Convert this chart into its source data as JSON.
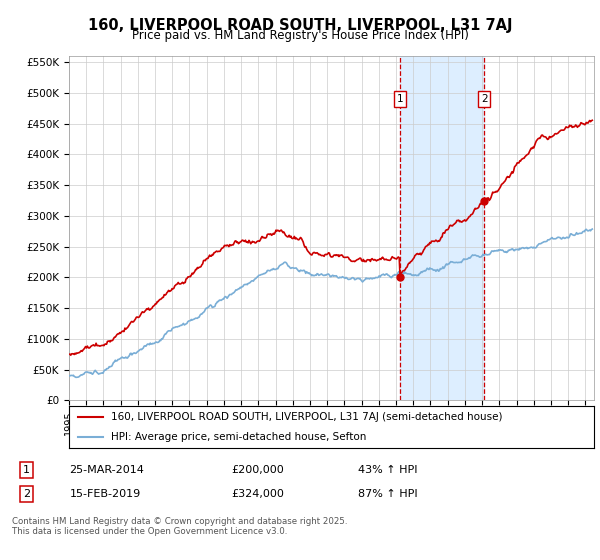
{
  "title": "160, LIVERPOOL ROAD SOUTH, LIVERPOOL, L31 7AJ",
  "subtitle": "Price paid vs. HM Land Registry's House Price Index (HPI)",
  "ylabel_ticks": [
    "£0",
    "£50K",
    "£100K",
    "£150K",
    "£200K",
    "£250K",
    "£300K",
    "£350K",
    "£400K",
    "£450K",
    "£500K",
    "£550K"
  ],
  "ylim": [
    0,
    560000
  ],
  "xlim_year": [
    1995,
    2025.5
  ],
  "legend_line1": "160, LIVERPOOL ROAD SOUTH, LIVERPOOL, L31 7AJ (semi-detached house)",
  "legend_line2": "HPI: Average price, semi-detached house, Sefton",
  "sale1_label": "1",
  "sale1_date": "25-MAR-2014",
  "sale1_price": "£200,000",
  "sale1_hpi": "43% ↑ HPI",
  "sale1_year": 2014.21,
  "sale1_value": 200000,
  "sale2_label": "2",
  "sale2_date": "15-FEB-2019",
  "sale2_price": "£324,000",
  "sale2_hpi": "87% ↑ HPI",
  "sale2_year": 2019.12,
  "sale2_value": 324000,
  "footnote": "Contains HM Land Registry data © Crown copyright and database right 2025.\nThis data is licensed under the Open Government Licence v3.0.",
  "red_color": "#cc0000",
  "blue_color": "#7aaed6",
  "shade_color": "#ddeeff",
  "grid_color": "#cccccc",
  "background_color": "#ffffff"
}
